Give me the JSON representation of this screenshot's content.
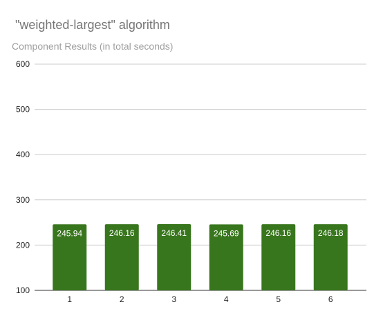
{
  "chart_data": {
    "type": "bar",
    "title": "\"weighted-largest\" algorithm",
    "subtitle": "Component Results (in total seconds)",
    "categories": [
      "1",
      "2",
      "3",
      "4",
      "5",
      "6"
    ],
    "values": [
      245.94,
      246.16,
      246.41,
      245.69,
      246.16,
      246.18
    ],
    "value_labels": [
      "245.94",
      "246.16",
      "246.41",
      "245.69",
      "246.16",
      "246.18"
    ],
    "ylim": [
      100,
      600
    ],
    "yticks": [
      100,
      200,
      300,
      400,
      500,
      600
    ],
    "ytick_labels": [
      "100",
      "200",
      "300",
      "400",
      "500",
      "600"
    ],
    "grid": true,
    "legend": "none",
    "bar_color": "#38761d"
  }
}
